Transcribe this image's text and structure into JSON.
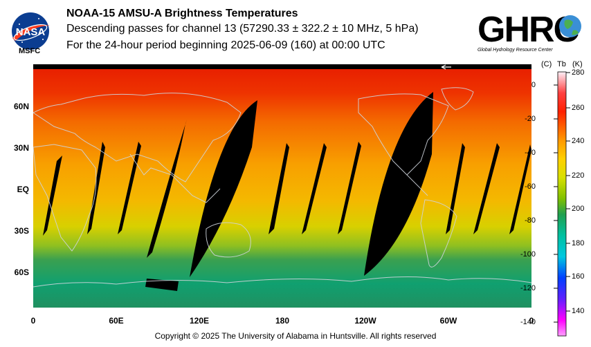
{
  "header": {
    "title": "NOAA-15 AMSU-A Brightness Temperatures",
    "subtitle_1": "Descending passes for channel 13 (57290.33 ± 322.2 ± 10 MHz, 5 hPa)",
    "subtitle_2": "For the 24-hour period beginning 2025-06-09 (160) at 00:00 UTC"
  },
  "logos": {
    "nasa_text": "NASA",
    "msfc": "MSFC",
    "ghrc_text": "GHRC",
    "ghrc_tagline": "Global Hydrology Resource Center"
  },
  "map": {
    "lat_labels": [
      "60N",
      "30N",
      "EQ",
      "30S",
      "60S"
    ],
    "lon_labels": [
      "0",
      "60E",
      "120E",
      "180",
      "120W",
      "60W",
      "0"
    ]
  },
  "colorbar": {
    "celsius_header": "(C)",
    "tb_header": "Tb",
    "kelvin_header": "(K)",
    "celsius_ticks": [
      "0",
      "-20",
      "-40",
      "-60",
      "-80",
      "-100",
      "-120",
      "-140"
    ],
    "kelvin_ticks": [
      "280",
      "260",
      "240",
      "220",
      "200",
      "180",
      "160",
      "140"
    ],
    "colors": [
      "#fff0f8",
      "#ff0000",
      "#ff9900",
      "#dddd00",
      "#00aa55",
      "#00cccc",
      "#0000ff",
      "#ff00ff"
    ]
  },
  "footer": {
    "copyright": "Copyright © 2025 The University of Alabama in Huntsville.  All rights reserved"
  }
}
